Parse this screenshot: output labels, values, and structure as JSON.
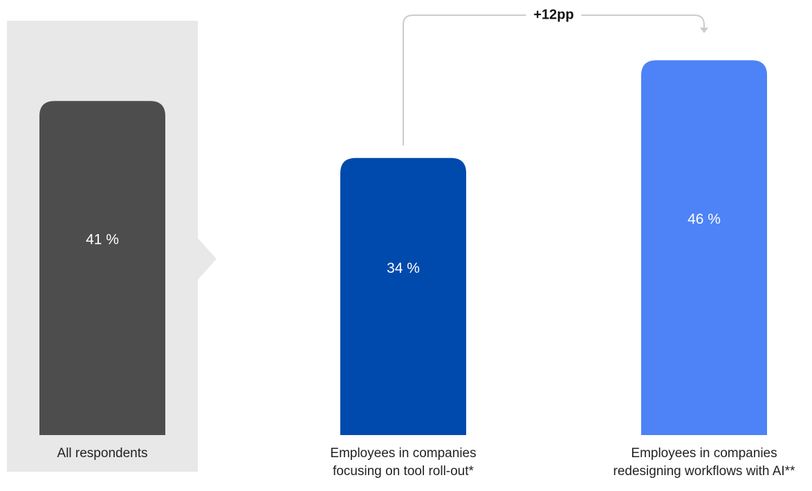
{
  "chart_data": {
    "type": "bar",
    "categories": [
      [
        "All respondents"
      ],
      [
        "Employees in companies",
        "focusing on tool roll-out*"
      ],
      [
        "Employees in companies",
        "redesigning workflows with AI**"
      ]
    ],
    "values": [
      41,
      34,
      46
    ],
    "value_labels": [
      "41 %",
      "34 %",
      "46 %"
    ],
    "colors": [
      "#4d4d4d",
      "#004aad",
      "#4d83f7"
    ],
    "highlight_background": "#e8e8e8",
    "connector_color": "#cccccc",
    "annotation": {
      "text": "+12pp",
      "from_index": 1,
      "to_index": 2
    },
    "ylim": [
      0,
      50
    ]
  }
}
